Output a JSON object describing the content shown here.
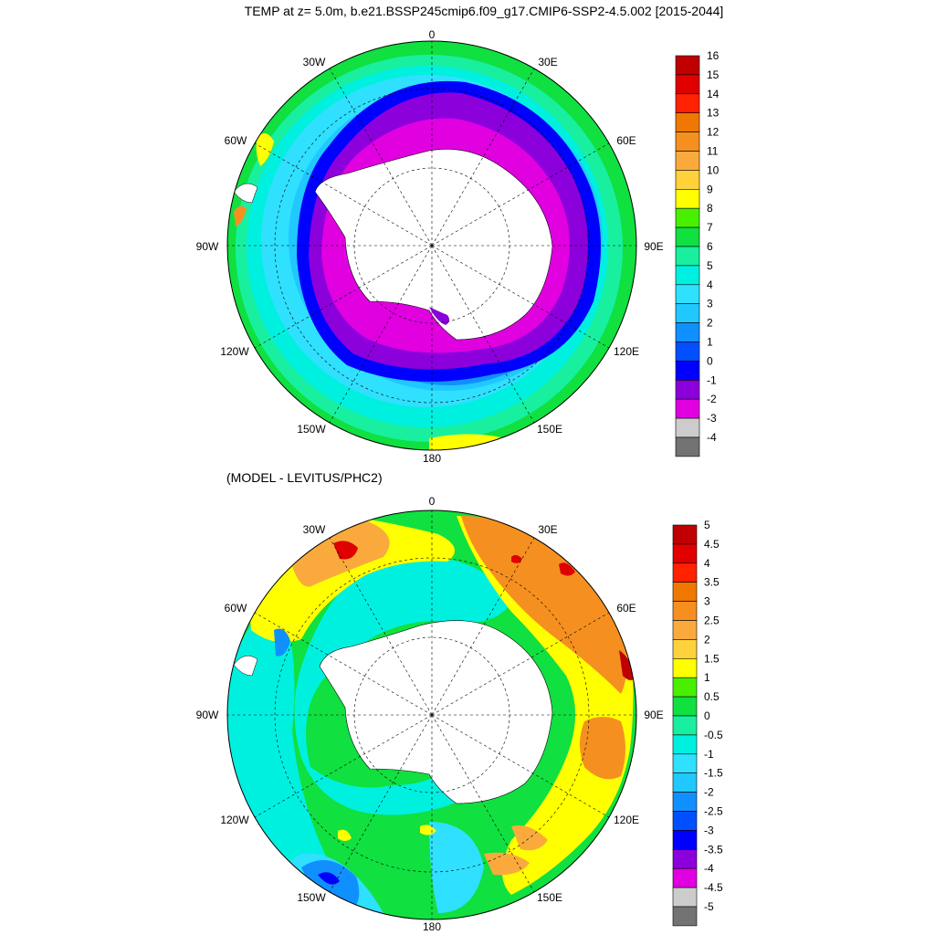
{
  "title": "TEMP at z=   5.0m, b.e21.BSSP245cmip6.f09_g17.CMIP6-SSP2-4.5.002 [2015-2044]",
  "subtitle": "(MODEL - LEVITUS/PHC2)",
  "longitude_labels": [
    "0",
    "30E",
    "60E",
    "90E",
    "120E",
    "150E",
    "180",
    "150W",
    "120W",
    "90W",
    "60W",
    "30W"
  ],
  "colorbar_top": {
    "labels": [
      "16",
      "15",
      "14",
      "13",
      "12",
      "11",
      "10",
      "9",
      "8",
      "7",
      "6",
      "5",
      "4",
      "3",
      "2",
      "1",
      "0",
      "-1",
      "-2",
      "-3",
      "-4"
    ],
    "colors": [
      "#c00000",
      "#e00000",
      "#ff2200",
      "#f07800",
      "#f59020",
      "#faaa3c",
      "#ffd23c",
      "#ffff00",
      "#48f000",
      "#10e040",
      "#18f0a0",
      "#00f0e0",
      "#30e0ff",
      "#20c8ff",
      "#1090ff",
      "#0050ff",
      "#0000ff",
      "#8c00dc",
      "#e000e0",
      "#cccccc",
      "#737373"
    ]
  },
  "colorbar_bottom": {
    "labels": [
      "5",
      "4.5",
      "4",
      "3.5",
      "3",
      "2.5",
      "2",
      "1.5",
      "1",
      "0.5",
      "0",
      "-0.5",
      "-1",
      "-1.5",
      "-2",
      "-2.5",
      "-3",
      "-3.5",
      "-4",
      "-4.5",
      "-5"
    ],
    "colors": [
      "#c00000",
      "#e00000",
      "#ff2200",
      "#f07800",
      "#f59020",
      "#faaa3c",
      "#ffd23c",
      "#ffff00",
      "#48f000",
      "#10e040",
      "#18f0a0",
      "#00f0e0",
      "#30e0ff",
      "#20c8ff",
      "#1090ff",
      "#0050ff",
      "#0000ff",
      "#8c00dc",
      "#e000e0",
      "#cccccc",
      "#737373"
    ]
  }
}
